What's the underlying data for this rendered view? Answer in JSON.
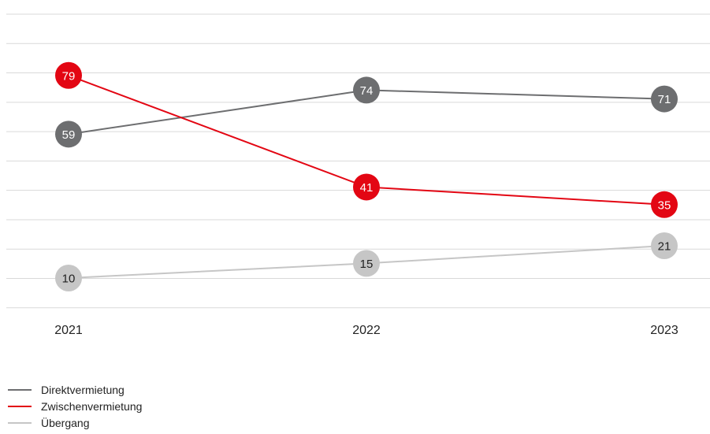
{
  "chart_data": {
    "type": "line",
    "categories": [
      "2021",
      "2022",
      "2023"
    ],
    "series": [
      {
        "name": "Direktvermietung",
        "values": [
          59,
          74,
          71
        ],
        "color": "#6d6e70",
        "label_color": "#ffffff"
      },
      {
        "name": "Zwischenvermietung",
        "values": [
          79,
          41,
          35
        ],
        "color": "#e30613",
        "label_color": "#ffffff"
      },
      {
        "name": "Übergang",
        "values": [
          10,
          15,
          21
        ],
        "color": "#c6c6c6",
        "label_color": "#222222"
      }
    ],
    "ylim": [
      0,
      100
    ],
    "grid": true,
    "legend_position": "bottom-left"
  }
}
